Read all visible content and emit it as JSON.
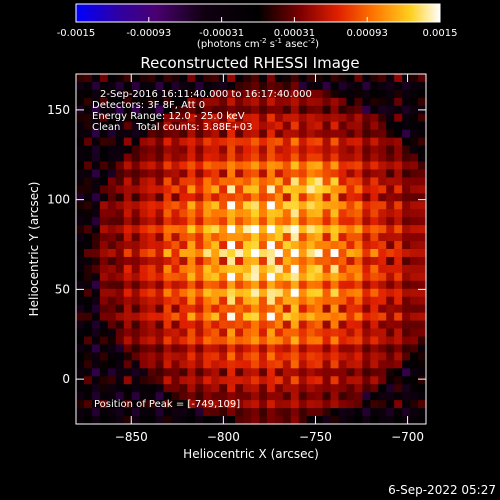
{
  "chart_data": {
    "type": "heatmap",
    "title": "Reconstructed RHESSI Image",
    "xlabel": "Heliocentric X (arcsec)",
    "ylabel": "Heliocentric Y (arcsec)",
    "xlim": [
      -880,
      -690
    ],
    "ylim": [
      -25,
      170
    ],
    "xticks": [
      -850,
      -800,
      -750,
      -700
    ],
    "yticks": [
      0,
      50,
      100,
      150
    ],
    "peak": [
      -749,
      109
    ],
    "annotations": [
      "2-Sep-2016 16:11:40.000 to 16:17:40.000",
      "Detectors: 3F 8F, Att 0",
      "Energy Range: 12.0 - 25.0 keV",
      "Clean     Total counts: 3.88E+03"
    ],
    "peak_label": "Position of Peak = [-749,109]",
    "footer_date": "6-Sep-2022 05:27",
    "colorbar": {
      "min": -0.0015,
      "max": 0.0015,
      "ticks": [
        "-0.0015",
        "-0.00093",
        "-0.00031",
        "0.00031",
        "0.00093",
        "0.0015"
      ],
      "units_parts": [
        "(photons cm",
        "-2",
        " s",
        "-1",
        " asec",
        "-2",
        ")"
      ]
    },
    "palette": [
      "#0000ff",
      "#2a0060",
      "#5a1a80",
      "#000000",
      "#600000",
      "#c01000",
      "#ff5a00",
      "#ffb000",
      "#ffffff"
    ]
  }
}
